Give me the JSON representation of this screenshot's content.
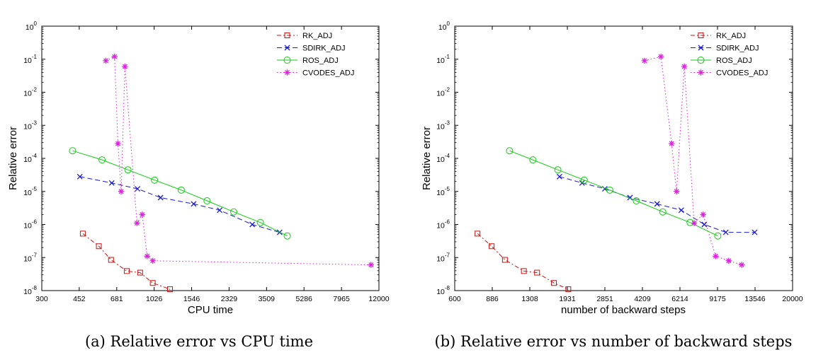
{
  "chart_data": [
    {
      "type": "line",
      "caption": "(a) Relative error vs CPU time",
      "xlabel": "CPU time",
      "ylabel": "Relative error",
      "xscale": "log",
      "yscale": "log",
      "xlim": [
        300,
        12000
      ],
      "ylim": [
        1e-08,
        1
      ],
      "xticks": [
        "300",
        "452",
        "681",
        "1026",
        "1546",
        "2329",
        "3509",
        "5286",
        "7965",
        "12000"
      ],
      "yticks": [
        "10^-8",
        "10^-7",
        "10^-6",
        "10^-5",
        "10^-4",
        "10^-3",
        "10^-2",
        "10^-1",
        "10^0"
      ],
      "legend_position": "top-right",
      "series": [
        {
          "name": "RK_ADJ",
          "color": "#cc1111",
          "marker": "square",
          "style": "dashdot",
          "x": [
            470,
            560,
            640,
            760,
            880,
            1010,
            1220
          ],
          "y": [
            5.3e-07,
            2.2e-07,
            8.5e-08,
            3.9e-08,
            3.5e-08,
            1.7e-08,
            1.1e-08
          ]
        },
        {
          "name": "SDIRK_ADJ",
          "color": "#1a1acc",
          "marker": "x",
          "style": "dashed",
          "x": [
            455,
            645,
            855,
            1100,
            1580,
            2100,
            3000,
            4050
          ],
          "y": [
            2.8e-05,
            1.8e-05,
            1.2e-05,
            6.5e-06,
            4.2e-06,
            2.7e-06,
            1e-06,
            5.8e-07
          ]
        },
        {
          "name": "ROS_ADJ",
          "color": "#11cc11",
          "marker": "circle",
          "style": "solid",
          "x": [
            420,
            580,
            770,
            1030,
            1380,
            1830,
            2450,
            3280,
            4400
          ],
          "y": [
            0.00017,
            9e-05,
            4.5e-05,
            2.2e-05,
            1.1e-05,
            5.2e-06,
            2.4e-06,
            1.15e-06,
            4.5e-07
          ]
        },
        {
          "name": "CVODES_ADJ",
          "color": "#dd22dd",
          "marker": "star",
          "style": "dotted",
          "x": [
            605,
            665,
            690,
            715,
            745,
            850,
            900,
            950,
            1010,
            11000
          ],
          "y": [
            0.09,
            0.12,
            0.00028,
            1e-05,
            0.06,
            1.1e-06,
            2e-06,
            1.1e-07,
            8e-08,
            6e-08
          ]
        }
      ]
    },
    {
      "type": "line",
      "caption": "(b) Relative error vs number of backward steps",
      "xlabel": "number of backward steps",
      "ylabel": "Relative error",
      "xscale": "log",
      "yscale": "log",
      "xlim": [
        600,
        20000
      ],
      "ylim": [
        1e-08,
        1
      ],
      "xticks": [
        "600",
        "886",
        "1308",
        "1931",
        "2851",
        "4209",
        "6214",
        "9175",
        "13546",
        "20000"
      ],
      "yticks": [
        "10^-8",
        "10^-7",
        "10^-6",
        "10^-5",
        "10^-4",
        "10^-3",
        "10^-2",
        "10^-1",
        "10^0"
      ],
      "legend_position": "top-right",
      "series": [
        {
          "name": "RK_ADJ",
          "color": "#cc1111",
          "marker": "square",
          "style": "dashdot",
          "x": [
            760,
            880,
            1010,
            1230,
            1410,
            1680,
            1950
          ],
          "y": [
            5.3e-07,
            2.2e-07,
            8.5e-08,
            3.9e-08,
            3.5e-08,
            1.7e-08,
            1.1e-08
          ]
        },
        {
          "name": "SDIRK_ADJ",
          "color": "#1a1acc",
          "marker": "x",
          "style": "dashed",
          "x": [
            1780,
            2250,
            2850,
            3700,
            4900,
            6300,
            8000,
            10000,
            13500
          ],
          "y": [
            2.8e-05,
            1.8e-05,
            1.2e-05,
            6.5e-06,
            4.2e-06,
            2.7e-06,
            1e-06,
            5.8e-07,
            5.8e-07
          ]
        },
        {
          "name": "ROS_ADJ",
          "color": "#11cc11",
          "marker": "circle",
          "style": "solid",
          "x": [
            1060,
            1350,
            1750,
            2300,
            3000,
            3950,
            5200,
            6900,
            9200
          ],
          "y": [
            0.00017,
            9e-05,
            4.5e-05,
            2.2e-05,
            1.1e-05,
            5.2e-06,
            2.4e-06,
            1.15e-06,
            4.5e-07
          ]
        },
        {
          "name": "CVODES_ADJ",
          "color": "#dd22dd",
          "marker": "star",
          "style": "dotted",
          "x": [
            4300,
            5100,
            5700,
            6000,
            6500,
            7200,
            7900,
            9000,
            10300,
            11800
          ],
          "y": [
            0.09,
            0.12,
            0.00028,
            1e-05,
            0.06,
            1.1e-06,
            2e-06,
            1.1e-07,
            8e-08,
            6e-08
          ]
        }
      ]
    }
  ]
}
